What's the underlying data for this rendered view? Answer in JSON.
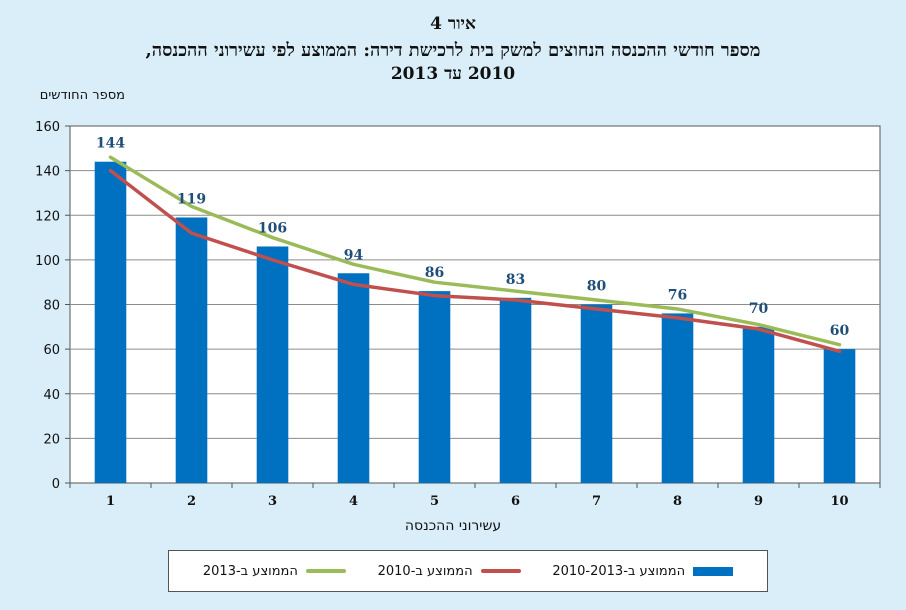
{
  "chart_data": {
    "type": "bar",
    "title": "איור 4",
    "subtitle": "מספר חודשי ההכנסה הנחוצים למשק בית לרכישת דירה: הממוצע לפי עשירוני ההכנסה,",
    "subtitle2": "2010 עד 2013",
    "ylabel": "מספר החודשים",
    "xlabel": "עשירוני ההכנסה",
    "ylim": [
      0,
      160
    ],
    "yticks": [
      0,
      20,
      40,
      60,
      80,
      100,
      120,
      140,
      160
    ],
    "categories": [
      "1",
      "2",
      "3",
      "4",
      "5",
      "6",
      "7",
      "8",
      "9",
      "10"
    ],
    "grid": true,
    "legend_position": "bottom",
    "series": [
      {
        "name": "הממוצע ב-2010-2013",
        "kind": "bar",
        "color": "#0070c0",
        "values": [
          144,
          119,
          106,
          94,
          86,
          83,
          80,
          76,
          70,
          60
        ],
        "data_labels": [
          "144",
          "119",
          "106",
          "94",
          "86",
          "83",
          "80",
          "76",
          "70",
          "60"
        ]
      },
      {
        "name": "הממוצע ב-2010",
        "kind": "line",
        "color": "#c0504d",
        "values": [
          140,
          112,
          100,
          89,
          84,
          82,
          78,
          74,
          69,
          59
        ]
      },
      {
        "name": "הממוצע ב-2013",
        "kind": "line",
        "color": "#9bbb59",
        "values": [
          146,
          124,
          110,
          98,
          90,
          86,
          82,
          78,
          71,
          62
        ]
      }
    ]
  }
}
